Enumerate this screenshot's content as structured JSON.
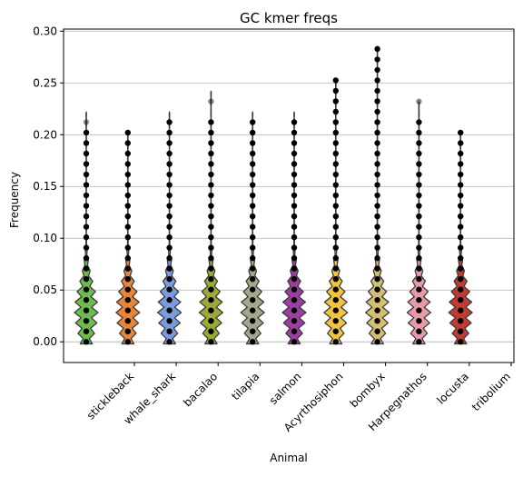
{
  "chart_data": {
    "type": "violin",
    "title": "GC kmer freqs",
    "xlabel": "Animal",
    "ylabel": "Frequency",
    "ylim": [
      -0.02,
      0.302
    ],
    "yticks": [
      0.0,
      0.05,
      0.1,
      0.15,
      0.2,
      0.25,
      0.3
    ],
    "ytick_labels": [
      "0.00",
      "0.05",
      "0.10",
      "0.15",
      "0.20",
      "0.25",
      "0.30"
    ],
    "grid": "horizontal",
    "categories": [
      "stickleback",
      "whale_shark",
      "bacalao",
      "tilapia",
      "salmon",
      "Acyrthosiphon",
      "bombyx",
      "Harpegnathos",
      "locusta",
      "tribolium"
    ],
    "series": [
      {
        "category": "stickleback",
        "color": "#6dbb4e",
        "max": 0.222,
        "points_max": 0.202
      },
      {
        "category": "whale_shark",
        "color": "#e8853a",
        "max": 0.202,
        "points_max": 0.202
      },
      {
        "category": "bacalao",
        "color": "#7b9be0",
        "max": 0.222,
        "points_max": 0.222
      },
      {
        "category": "tilapia",
        "color": "#9aaa35",
        "max": 0.242,
        "points_max": 0.222
      },
      {
        "category": "salmon",
        "color": "#a4a88a",
        "max": 0.222,
        "points_max": 0.222
      },
      {
        "category": "Acyrthosiphon",
        "color": "#9b3fa0",
        "max": 0.222,
        "points_max": 0.222
      },
      {
        "category": "bombyx",
        "color": "#f2c43e",
        "max": 0.253,
        "points_max": 0.253
      },
      {
        "category": "Harpegnathos",
        "color": "#d6bd74",
        "max": 0.285,
        "points_max": 0.285
      },
      {
        "category": "locusta",
        "color": "#e99aa8",
        "max": 0.232,
        "points_max": 0.222
      },
      {
        "category": "tribolium",
        "color": "#c23b32",
        "max": 0.202,
        "points_max": 0.202
      }
    ]
  }
}
